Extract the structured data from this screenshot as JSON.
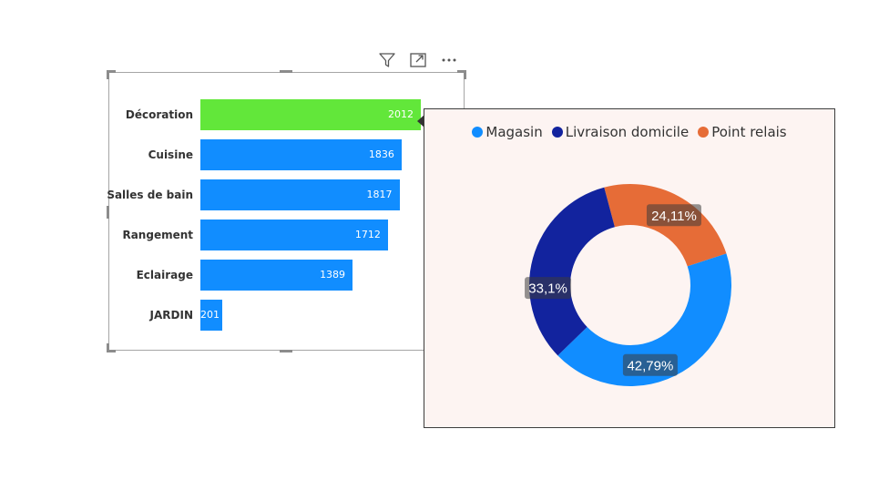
{
  "header_icons": [
    "filter-icon",
    "focus-mode-icon",
    "more-options-icon"
  ],
  "chart_data": [
    {
      "type": "bar",
      "orientation": "horizontal",
      "categories": [
        "Décoration",
        "Cuisine",
        "Salles de bain",
        "Rangement",
        "Eclairage",
        "JARDIN"
      ],
      "values": [
        2012,
        1836,
        1817,
        1712,
        1389,
        201
      ],
      "value_labels": [
        "2012",
        "1836",
        "1817",
        "1712",
        "1389",
        "201"
      ],
      "highlighted_category": "Décoration",
      "colors": {
        "default": "#118dff",
        "highlight": "#62e73a"
      },
      "xlim": [
        0,
        2100
      ],
      "grid": false
    },
    {
      "type": "pie",
      "variant": "donut",
      "legend_position": "top-center",
      "series": [
        {
          "name": "Magasin",
          "value": 42.79,
          "label": "42,79%",
          "color": "#118dff"
        },
        {
          "name": "Livraison domicile",
          "value": 33.1,
          "label": "33,1%",
          "color": "#12239e"
        },
        {
          "name": "Point relais",
          "value": 24.11,
          "label": "24,11%",
          "color": "#e66c37"
        }
      ]
    }
  ]
}
